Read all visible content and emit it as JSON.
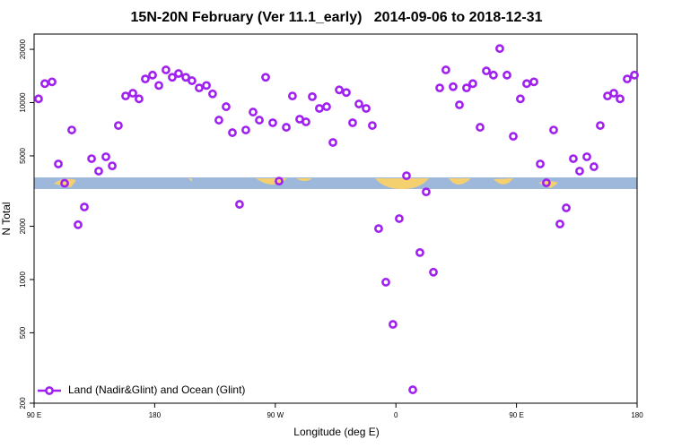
{
  "chart_data": {
    "type": "scatter",
    "title": "15N-20N February (Ver 11.1_early)   2014-09-06 to 2018-12-31",
    "x_label": "Longitude (deg E)",
    "y_label": "N Total",
    "xlim": [
      90,
      540
    ],
    "xticks": [
      {
        "value": 90,
        "label": "90 E"
      },
      180,
      {
        "value": 270,
        "label": "90 W"
      },
      {
        "value": 360,
        "label": "0"
      },
      {
        "value": 450,
        "label": "90 E"
      },
      {
        "value": 540,
        "label": "180"
      }
    ],
    "ylim": [
      200,
      24400
    ],
    "yticks": [
      200,
      500,
      1000,
      2000,
      5000,
      10000,
      20000
    ],
    "log_y": true,
    "legend": "bottom-left",
    "series": [
      {
        "name": "Land (Nadir&Glint) and Ocean (Glint)",
        "color": "#a020f0",
        "x": [
          93.3,
          98.0,
          103.4,
          108.1,
          112.8,
          118.1,
          122.8,
          127.5,
          132.9,
          138.2,
          143.6,
          148.3,
          152.9,
          158.3,
          163.7,
          168.3,
          173.0,
          178.4,
          183.1,
          188.4,
          193.1,
          197.8,
          203.2,
          207.8,
          213.2,
          218.6,
          223.2,
          227.9,
          233.3,
          238.0,
          243.3,
          248.0,
          253.4,
          258.1,
          262.8,
          268.1,
          272.8,
          278.2,
          282.8,
          288.2,
          292.9,
          297.6,
          302.9,
          308.3,
          313.0,
          317.7,
          323.0,
          327.7,
          332.4,
          337.8,
          342.4,
          347.1,
          352.5,
          357.8,
          362.5,
          367.9,
          372.6,
          377.9,
          382.6,
          388.0,
          392.7,
          397.3,
          402.7,
          407.4,
          412.7,
          417.4,
          422.8,
          427.5,
          432.8,
          437.5,
          442.9,
          447.6,
          452.9,
          457.6,
          463.0,
          467.7,
          472.3,
          477.7,
          482.4,
          487.1,
          492.4,
          497.1,
          502.5,
          507.8,
          512.5,
          517.9,
          522.6,
          527.3,
          532.6,
          538.0
        ],
        "values": [
          10500,
          12800,
          13100,
          4500,
          3500,
          7000,
          2040,
          2570,
          4820,
          4100,
          4940,
          4390,
          7420,
          10900,
          11300,
          10500,
          13600,
          14300,
          12500,
          15300,
          13900,
          14600,
          13900,
          13300,
          12100,
          12500,
          11200,
          7960,
          9480,
          6760,
          2660,
          7000,
          8840,
          7960,
          13900,
          7690,
          3600,
          7250,
          10900,
          8060,
          7780,
          10800,
          9270,
          9480,
          5950,
          11800,
          11400,
          7690,
          9820,
          9270,
          7420,
          1940,
          966,
          558,
          2210,
          3860,
          238,
          1420,
          3130,
          1100,
          12100,
          15300,
          12300,
          9710,
          12100,
          12800,
          7250,
          15100,
          14300,
          20200,
          14300,
          6450,
          10500,
          12800,
          13100,
          4500,
          3520,
          7000,
          2060,
          2540,
          4820,
          4100,
          4940,
          4340,
          7420,
          10900,
          11300,
          10500,
          13600,
          14300
        ]
      }
    ]
  }
}
